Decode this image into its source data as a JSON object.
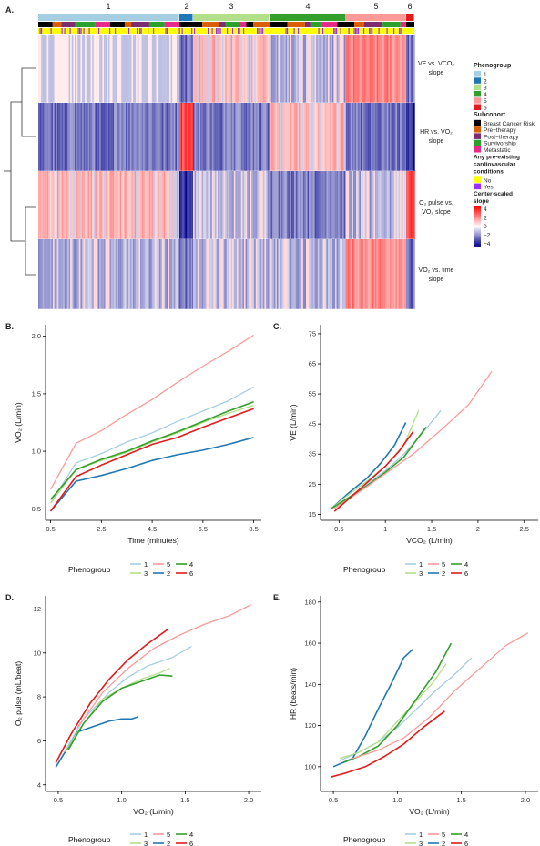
{
  "heatmap": {
    "panel_label": "A.",
    "column_group_labels": [
      "1",
      "2",
      "3",
      "4",
      "5",
      "6"
    ],
    "row_labels": [
      [
        "VE vs. VCO₂",
        "slope"
      ],
      [
        "HR vs. VO₂",
        "slope"
      ],
      [
        "O₂ pulse vs.",
        "VO₂ slope"
      ],
      [
        "VO₂ vs. time",
        "slope"
      ]
    ],
    "group_colors": [
      "#a6cee3",
      "#1f78b4",
      "#b2df8a",
      "#33a02c",
      "#fb9a99",
      "#e31a1c"
    ],
    "row_patterns": [
      [
        "neutral-blue",
        "blue",
        "light-red",
        "light-blue",
        "red",
        "blue"
      ],
      [
        "blue",
        "strong-red",
        "blue",
        "light-red",
        "blue",
        "strong-blue"
      ],
      [
        "light-red",
        "strong-blue",
        "light-blue",
        "blue",
        "light-blue",
        "strong-red"
      ],
      [
        "light-blue",
        "blue",
        "light-blue",
        "light-blue",
        "red",
        "blue"
      ]
    ]
  },
  "legend": {
    "phenogroup_title": "Phenogroup",
    "phenogroup_items": [
      {
        "label": "1",
        "color": "#a6cee3"
      },
      {
        "label": "2",
        "color": "#1f78b4"
      },
      {
        "label": "3",
        "color": "#b2df8a"
      },
      {
        "label": "4",
        "color": "#33a02c"
      },
      {
        "label": "5",
        "color": "#fb9a99"
      },
      {
        "label": "6",
        "color": "#e31a1c"
      }
    ],
    "subcohort_title": "Subcohort",
    "subcohort_items": [
      {
        "label": "Breast Cancer Risk",
        "color": "#000000"
      },
      {
        "label": "Pre−therapy",
        "color": "#d95f02"
      },
      {
        "label": "Post−therapy",
        "color": "#7b2d6e"
      },
      {
        "label": "Survivorship",
        "color": "#2ca02c"
      },
      {
        "label": "Metastatic",
        "color": "#e7298a"
      }
    ],
    "cardio_title": [
      "Any pre-existing",
      "cardiovascular",
      "conditions"
    ],
    "cardio_items": [
      {
        "label": "No",
        "color": "#ffff00"
      },
      {
        "label": "Yes",
        "color": "#9b30ff"
      }
    ],
    "scale_title": [
      "Center-scaled",
      "slope"
    ],
    "scale_ticks": [
      "4",
      "2",
      "0",
      "−2",
      "−4"
    ],
    "scale_colors": {
      "high": "#ff0000",
      "mid": "#ffffff",
      "low": "#00008b"
    }
  },
  "chart_data": [
    {
      "panel": "B.",
      "type": "line",
      "xlabel": "Time (minutes)",
      "ylabel": "VO₂ (L/min)",
      "xlim": [
        0.3,
        8.8
      ],
      "ylim": [
        0.4,
        2.1
      ],
      "xticks": [
        "0.5",
        "2.5",
        "4.5",
        "6.5",
        "8.5"
      ],
      "yticks": [
        "0.5",
        "1.0",
        "1.5",
        "2.0"
      ],
      "legend_title": "Phenogroup",
      "series": [
        {
          "name": "1",
          "color": "#a6cee3",
          "x": [
            0.5,
            1.5,
            2.5,
            3.5,
            4.5,
            5.5,
            6.5,
            7.5,
            8.5
          ],
          "y": [
            0.55,
            0.9,
            0.98,
            1.08,
            1.16,
            1.26,
            1.35,
            1.44,
            1.56
          ]
        },
        {
          "name": "2",
          "color": "#1f78b4",
          "x": [
            0.5,
            1.5,
            2.5,
            3.5,
            4.5,
            5.5,
            6.5,
            7.5,
            8.5
          ],
          "y": [
            0.48,
            0.74,
            0.79,
            0.85,
            0.92,
            0.97,
            1.01,
            1.06,
            1.12
          ]
        },
        {
          "name": "3",
          "color": "#b2df8a",
          "x": [
            0.5,
            1.5,
            2.5,
            3.5,
            4.5,
            5.5,
            6.5,
            7.5,
            8.5
          ],
          "y": [
            0.55,
            0.84,
            0.92,
            0.99,
            1.08,
            1.16,
            1.25,
            1.33,
            1.4
          ]
        },
        {
          "name": "4",
          "color": "#33a02c",
          "x": [
            0.5,
            1.5,
            2.5,
            3.5,
            4.5,
            5.5,
            6.5,
            7.5,
            8.5
          ],
          "y": [
            0.58,
            0.84,
            0.93,
            1.0,
            1.09,
            1.17,
            1.26,
            1.35,
            1.43
          ]
        },
        {
          "name": "5",
          "color": "#fb9a99",
          "x": [
            0.5,
            1.5,
            2.5,
            3.5,
            4.5,
            5.5,
            6.5,
            7.5,
            8.5
          ],
          "y": [
            0.67,
            1.07,
            1.18,
            1.32,
            1.45,
            1.6,
            1.74,
            1.87,
            2.01
          ]
        },
        {
          "name": "6",
          "color": "#e31a1c",
          "x": [
            0.5,
            1.5,
            2.5,
            3.5,
            4.5,
            5.5,
            6.5,
            7.5,
            8.5
          ],
          "y": [
            0.48,
            0.78,
            0.88,
            0.97,
            1.06,
            1.12,
            1.21,
            1.29,
            1.37
          ]
        }
      ]
    },
    {
      "panel": "C.",
      "type": "line",
      "xlabel": "VCO₂ (L/min)",
      "ylabel": "VE (L/min)",
      "xlim": [
        0.3,
        2.65
      ],
      "ylim": [
        13,
        78
      ],
      "xticks": [
        "0.5",
        "1",
        "1.5",
        "2",
        "2.5"
      ],
      "yticks": [
        "15",
        "25",
        "35",
        "45",
        "55",
        "65",
        "75"
      ],
      "legend_title": "Phenogroup",
      "series": [
        {
          "name": "1",
          "color": "#a6cee3",
          "x": [
            0.42,
            0.6,
            0.8,
            1.0,
            1.2,
            1.4,
            1.6
          ],
          "y": [
            17,
            20.5,
            25,
            29.5,
            35,
            42,
            49.5
          ]
        },
        {
          "name": "2",
          "color": "#1f78b4",
          "x": [
            0.42,
            0.6,
            0.8,
            0.95,
            1.1,
            1.22
          ],
          "y": [
            17,
            22,
            27,
            32,
            38,
            45.5
          ]
        },
        {
          "name": "3",
          "color": "#b2df8a",
          "x": [
            0.42,
            0.6,
            0.8,
            1.0,
            1.2,
            1.36
          ],
          "y": [
            17,
            21.5,
            26,
            31,
            38,
            49.5
          ]
        },
        {
          "name": "4",
          "color": "#33a02c",
          "x": [
            0.42,
            0.6,
            0.8,
            1.0,
            1.2,
            1.44
          ],
          "y": [
            17,
            20.5,
            24.5,
            29,
            34,
            44
          ]
        },
        {
          "name": "5",
          "color": "#fb9a99",
          "x": [
            0.45,
            0.7,
            1.0,
            1.3,
            1.6,
            1.9,
            2.15
          ],
          "y": [
            17,
            22,
            28.5,
            35,
            43,
            51.5,
            62.5
          ]
        },
        {
          "name": "6",
          "color": "#e31a1c",
          "x": [
            0.45,
            0.6,
            0.8,
            1.0,
            1.15,
            1.3
          ],
          "y": [
            16,
            20,
            25.5,
            31,
            36,
            42.5
          ]
        }
      ]
    },
    {
      "panel": "D.",
      "type": "line",
      "xlabel": "VO₂ (L/min)",
      "ylabel": "O₂ pulse (mL/beat)",
      "xlim": [
        0.4,
        2.1
      ],
      "ylim": [
        3.7,
        12.6
      ],
      "xticks": [
        "0.5",
        "1.0",
        "1.5",
        "2.0"
      ],
      "yticks": [
        "4",
        "6",
        "8",
        "10",
        "12"
      ],
      "legend_title": "Phenogroup",
      "series": [
        {
          "name": "1",
          "color": "#a6cee3",
          "x": [
            0.55,
            0.7,
            0.9,
            1.05,
            1.2,
            1.4,
            1.55
          ],
          "y": [
            5.5,
            7.0,
            8.2,
            8.9,
            9.4,
            9.8,
            10.3
          ]
        },
        {
          "name": "2",
          "color": "#1f78b4",
          "x": [
            0.48,
            0.65,
            0.8,
            0.9,
            1.0,
            1.08,
            1.13
          ],
          "y": [
            4.8,
            6.4,
            6.7,
            6.9,
            7.0,
            7.0,
            7.1
          ]
        },
        {
          "name": "3",
          "color": "#b2df8a",
          "x": [
            0.55,
            0.7,
            0.85,
            1.0,
            1.15,
            1.3,
            1.38
          ],
          "y": [
            5.5,
            6.8,
            7.9,
            8.4,
            8.8,
            9.1,
            9.3
          ]
        },
        {
          "name": "4",
          "color": "#33a02c",
          "x": [
            0.58,
            0.7,
            0.85,
            1.0,
            1.15,
            1.3,
            1.4
          ],
          "y": [
            5.6,
            6.8,
            7.8,
            8.4,
            8.7,
            9.0,
            8.95
          ]
        },
        {
          "name": "5",
          "color": "#fb9a99",
          "x": [
            0.65,
            0.85,
            1.05,
            1.25,
            1.45,
            1.65,
            1.85,
            2.02
          ],
          "y": [
            6.6,
            8.2,
            9.3,
            10.2,
            10.8,
            11.3,
            11.7,
            12.2
          ]
        },
        {
          "name": "6",
          "color": "#e31a1c",
          "x": [
            0.48,
            0.6,
            0.75,
            0.9,
            1.05,
            1.2,
            1.37
          ],
          "y": [
            5.0,
            6.3,
            7.7,
            8.8,
            9.7,
            10.4,
            11.1
          ]
        }
      ]
    },
    {
      "panel": "E.",
      "type": "line",
      "xlabel": "VO₂ (L/min)",
      "ylabel": "HR (beats/min)",
      "xlim": [
        0.4,
        2.1
      ],
      "ylim": [
        88,
        183
      ],
      "xticks": [
        "0.5",
        "1.0",
        "1.5",
        "2.0"
      ],
      "yticks": [
        "100",
        "120",
        "140",
        "160",
        "180"
      ],
      "legend_title": "Phenogroup",
      "series": [
        {
          "name": "1",
          "color": "#a6cee3",
          "x": [
            0.55,
            0.7,
            0.85,
            1.0,
            1.15,
            1.3,
            1.45,
            1.58
          ],
          "y": [
            103,
            107,
            112,
            119,
            128,
            137,
            145,
            153
          ]
        },
        {
          "name": "2",
          "color": "#1f78b4",
          "x": [
            0.5,
            0.65,
            0.75,
            0.85,
            0.95,
            1.05,
            1.12
          ],
          "y": [
            100,
            104,
            115,
            128,
            140,
            153,
            157
          ]
        },
        {
          "name": "3",
          "color": "#b2df8a",
          "x": [
            0.55,
            0.7,
            0.85,
            1.0,
            1.15,
            1.28,
            1.38
          ],
          "y": [
            104,
            107,
            112,
            122,
            132,
            141,
            150
          ]
        },
        {
          "name": "4",
          "color": "#33a02c",
          "x": [
            0.58,
            0.7,
            0.85,
            1.0,
            1.15,
            1.3,
            1.42
          ],
          "y": [
            102,
            105,
            110,
            120,
            133,
            146,
            160
          ]
        },
        {
          "name": "5",
          "color": "#fb9a99",
          "x": [
            0.65,
            0.85,
            1.05,
            1.25,
            1.45,
            1.65,
            1.85,
            2.02
          ],
          "y": [
            104,
            108,
            114,
            124,
            137,
            148,
            159,
            165
          ]
        },
        {
          "name": "6",
          "color": "#e31a1c",
          "x": [
            0.48,
            0.6,
            0.75,
            0.9,
            1.05,
            1.2,
            1.37
          ],
          "y": [
            95,
            97,
            100,
            105,
            111,
            119,
            127
          ]
        }
      ]
    }
  ]
}
